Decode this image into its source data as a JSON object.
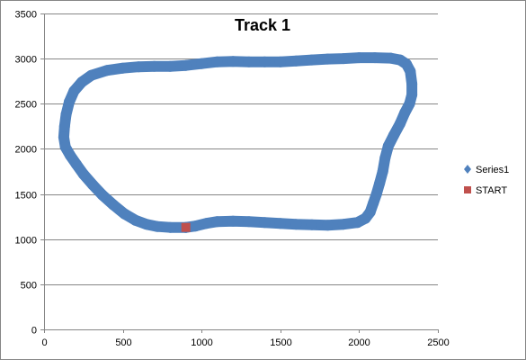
{
  "chart_data": {
    "type": "scatter",
    "title": "Track 1",
    "xlabel": "",
    "ylabel": "",
    "xlim": [
      0,
      2500
    ],
    "ylim": [
      0,
      3500
    ],
    "xticks": [
      0,
      500,
      1000,
      1500,
      2000,
      2500
    ],
    "yticks": [
      0,
      500,
      1000,
      1500,
      2000,
      2500,
      3000,
      3500
    ],
    "grid": "horizontal",
    "legend_position": "right",
    "series": [
      {
        "name": "Series1",
        "color": "#4F81BD",
        "marker": "diamond",
        "points": [
          [
            900,
            1130
          ],
          [
            960,
            1145
          ],
          [
            1030,
            1175
          ],
          [
            1100,
            1195
          ],
          [
            1200,
            1200
          ],
          [
            1300,
            1195
          ],
          [
            1400,
            1185
          ],
          [
            1500,
            1175
          ],
          [
            1600,
            1165
          ],
          [
            1700,
            1160
          ],
          [
            1800,
            1155
          ],
          [
            1900,
            1165
          ],
          [
            1990,
            1185
          ],
          [
            2040,
            1230
          ],
          [
            2070,
            1300
          ],
          [
            2090,
            1400
          ],
          [
            2110,
            1500
          ],
          [
            2130,
            1620
          ],
          [
            2150,
            1750
          ],
          [
            2165,
            1900
          ],
          [
            2185,
            2030
          ],
          [
            2220,
            2150
          ],
          [
            2260,
            2280
          ],
          [
            2290,
            2400
          ],
          [
            2320,
            2500
          ],
          [
            2335,
            2600
          ],
          [
            2335,
            2720
          ],
          [
            2325,
            2860
          ],
          [
            2300,
            2940
          ],
          [
            2260,
            2985
          ],
          [
            2200,
            3005
          ],
          [
            2100,
            3010
          ],
          [
            2000,
            3010
          ],
          [
            1900,
            3000
          ],
          [
            1800,
            2995
          ],
          [
            1700,
            2985
          ],
          [
            1600,
            2975
          ],
          [
            1500,
            2965
          ],
          [
            1400,
            2965
          ],
          [
            1300,
            2965
          ],
          [
            1200,
            2970
          ],
          [
            1100,
            2965
          ],
          [
            1000,
            2945
          ],
          [
            900,
            2925
          ],
          [
            800,
            2915
          ],
          [
            700,
            2915
          ],
          [
            600,
            2910
          ],
          [
            500,
            2895
          ],
          [
            400,
            2870
          ],
          [
            300,
            2815
          ],
          [
            240,
            2740
          ],
          [
            190,
            2640
          ],
          [
            160,
            2520
          ],
          [
            140,
            2380
          ],
          [
            130,
            2250
          ],
          [
            125,
            2130
          ],
          [
            135,
            2020
          ],
          [
            165,
            1930
          ],
          [
            205,
            1830
          ],
          [
            250,
            1720
          ],
          [
            310,
            1600
          ],
          [
            370,
            1490
          ],
          [
            440,
            1380
          ],
          [
            510,
            1280
          ],
          [
            580,
            1210
          ],
          [
            650,
            1165
          ],
          [
            720,
            1140
          ],
          [
            800,
            1130
          ],
          [
            900,
            1130
          ]
        ]
      },
      {
        "name": "START",
        "color": "#C0504D",
        "marker": "square",
        "points": [
          [
            900,
            1130
          ]
        ]
      }
    ]
  }
}
